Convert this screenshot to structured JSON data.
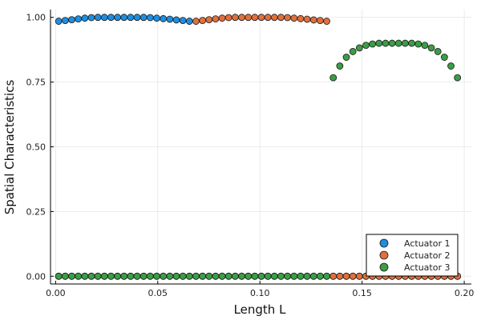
{
  "chart_data": {
    "type": "scatter",
    "title": "",
    "xlabel": "Length L",
    "ylabel": "Spatial Characteristics",
    "xlim": [
      -0.0025,
      0.2035
    ],
    "ylim": [
      -0.03,
      1.03
    ],
    "xticks": [
      0.0,
      0.05,
      0.1,
      0.15,
      0.2
    ],
    "xtick_labels": [
      "0.00",
      "0.05",
      "0.10",
      "0.15",
      "0.20"
    ],
    "yticks": [
      0.0,
      0.25,
      0.5,
      0.75,
      1.0
    ],
    "ytick_labels": [
      "0.00",
      "0.25",
      "0.50",
      "0.75",
      "1.00"
    ],
    "grid": true,
    "legend_position": "bottom-right",
    "series": [
      {
        "name": "Actuator 1",
        "color": "#1f8ee0",
        "points": [
          [
            0.0015,
            0.985
          ],
          [
            0.0047,
            0.988
          ],
          [
            0.0079,
            0.991
          ],
          [
            0.0111,
            0.994
          ],
          [
            0.0143,
            0.997
          ],
          [
            0.0175,
            0.999
          ],
          [
            0.0207,
            1.0
          ],
          [
            0.0239,
            1.0
          ],
          [
            0.0271,
            1.0
          ],
          [
            0.0303,
            1.0
          ],
          [
            0.0335,
            1.0
          ],
          [
            0.0367,
            1.0
          ],
          [
            0.0399,
            1.0
          ],
          [
            0.0431,
            1.0
          ],
          [
            0.0463,
            0.999
          ],
          [
            0.0495,
            0.997
          ],
          [
            0.0527,
            0.995
          ],
          [
            0.0559,
            0.993
          ],
          [
            0.0591,
            0.99
          ],
          [
            0.0623,
            0.988
          ],
          [
            0.0655,
            0.985
          ],
          [
            0.0687,
            0.0
          ],
          [
            0.0719,
            0.0
          ],
          [
            0.0751,
            0.0
          ],
          [
            0.0783,
            0.0
          ],
          [
            0.0815,
            0.0
          ],
          [
            0.0847,
            0.0
          ],
          [
            0.0879,
            0.0
          ],
          [
            0.0911,
            0.0
          ],
          [
            0.0943,
            0.0
          ],
          [
            0.0975,
            0.0
          ],
          [
            0.1007,
            0.0
          ],
          [
            0.1039,
            0.0
          ],
          [
            0.1071,
            0.0
          ],
          [
            0.1103,
            0.0
          ],
          [
            0.1135,
            0.0
          ],
          [
            0.1167,
            0.0
          ],
          [
            0.1199,
            0.0
          ],
          [
            0.1231,
            0.0
          ],
          [
            0.1263,
            0.0
          ],
          [
            0.1295,
            0.0
          ],
          [
            0.1327,
            0.0
          ],
          [
            0.1359,
            0.0
          ],
          [
            0.1391,
            0.0
          ],
          [
            0.1423,
            0.0
          ],
          [
            0.1455,
            0.0
          ],
          [
            0.1487,
            0.0
          ],
          [
            0.1519,
            0.0
          ],
          [
            0.1551,
            0.0
          ],
          [
            0.1583,
            0.0
          ],
          [
            0.1615,
            0.0
          ],
          [
            0.1647,
            0.0
          ],
          [
            0.1679,
            0.0
          ],
          [
            0.1711,
            0.0
          ],
          [
            0.1743,
            0.0
          ],
          [
            0.1775,
            0.0
          ],
          [
            0.1807,
            0.0
          ],
          [
            0.1839,
            0.0
          ],
          [
            0.1871,
            0.0
          ],
          [
            0.1903,
            0.0
          ],
          [
            0.1935,
            0.0
          ],
          [
            0.1967,
            0.0
          ]
        ]
      },
      {
        "name": "Actuator 2",
        "color": "#e0703c",
        "points": [
          [
            0.0015,
            0.0
          ],
          [
            0.0047,
            0.0
          ],
          [
            0.0079,
            0.0
          ],
          [
            0.0111,
            0.0
          ],
          [
            0.0143,
            0.0
          ],
          [
            0.0175,
            0.0
          ],
          [
            0.0207,
            0.0
          ],
          [
            0.0239,
            0.0
          ],
          [
            0.0271,
            0.0
          ],
          [
            0.0303,
            0.0
          ],
          [
            0.0335,
            0.0
          ],
          [
            0.0367,
            0.0
          ],
          [
            0.0399,
            0.0
          ],
          [
            0.0431,
            0.0
          ],
          [
            0.0463,
            0.0
          ],
          [
            0.0495,
            0.0
          ],
          [
            0.0527,
            0.0
          ],
          [
            0.0559,
            0.0
          ],
          [
            0.0591,
            0.0
          ],
          [
            0.0623,
            0.0
          ],
          [
            0.0655,
            0.0
          ],
          [
            0.0687,
            0.985
          ],
          [
            0.0719,
            0.988
          ],
          [
            0.0751,
            0.991
          ],
          [
            0.0783,
            0.994
          ],
          [
            0.0815,
            0.997
          ],
          [
            0.0847,
            0.999
          ],
          [
            0.0879,
            1.0
          ],
          [
            0.0911,
            1.0
          ],
          [
            0.0943,
            1.0
          ],
          [
            0.0975,
            1.0
          ],
          [
            0.1007,
            1.0
          ],
          [
            0.1039,
            1.0
          ],
          [
            0.1071,
            1.0
          ],
          [
            0.1103,
            1.0
          ],
          [
            0.1135,
            0.999
          ],
          [
            0.1167,
            0.997
          ],
          [
            0.1199,
            0.995
          ],
          [
            0.1231,
            0.993
          ],
          [
            0.1263,
            0.99
          ],
          [
            0.1295,
            0.988
          ],
          [
            0.1327,
            0.985
          ],
          [
            0.1359,
            0.0
          ],
          [
            0.1391,
            0.0
          ],
          [
            0.1423,
            0.0
          ],
          [
            0.1455,
            0.0
          ],
          [
            0.1487,
            0.0
          ],
          [
            0.1519,
            0.0
          ],
          [
            0.1551,
            0.0
          ],
          [
            0.1583,
            0.0
          ],
          [
            0.1615,
            0.0
          ],
          [
            0.1647,
            0.0
          ],
          [
            0.1679,
            0.0
          ],
          [
            0.1711,
            0.0
          ],
          [
            0.1743,
            0.0
          ],
          [
            0.1775,
            0.0
          ],
          [
            0.1807,
            0.0
          ],
          [
            0.1839,
            0.0
          ],
          [
            0.1871,
            0.0
          ],
          [
            0.1903,
            0.0
          ],
          [
            0.1935,
            0.0
          ],
          [
            0.1967,
            0.0
          ]
        ]
      },
      {
        "name": "Actuator 3",
        "color": "#3a9e45",
        "points": [
          [
            0.0015,
            0.0
          ],
          [
            0.0047,
            0.0
          ],
          [
            0.0079,
            0.0
          ],
          [
            0.0111,
            0.0
          ],
          [
            0.0143,
            0.0
          ],
          [
            0.0175,
            0.0
          ],
          [
            0.0207,
            0.0
          ],
          [
            0.0239,
            0.0
          ],
          [
            0.0271,
            0.0
          ],
          [
            0.0303,
            0.0
          ],
          [
            0.0335,
            0.0
          ],
          [
            0.0367,
            0.0
          ],
          [
            0.0399,
            0.0
          ],
          [
            0.0431,
            0.0
          ],
          [
            0.0463,
            0.0
          ],
          [
            0.0495,
            0.0
          ],
          [
            0.0527,
            0.0
          ],
          [
            0.0559,
            0.0
          ],
          [
            0.0591,
            0.0
          ],
          [
            0.0623,
            0.0
          ],
          [
            0.0655,
            0.0
          ],
          [
            0.0687,
            0.0
          ],
          [
            0.0719,
            0.0
          ],
          [
            0.0751,
            0.0
          ],
          [
            0.0783,
            0.0
          ],
          [
            0.0815,
            0.0
          ],
          [
            0.0847,
            0.0
          ],
          [
            0.0879,
            0.0
          ],
          [
            0.0911,
            0.0
          ],
          [
            0.0943,
            0.0
          ],
          [
            0.0975,
            0.0
          ],
          [
            0.1007,
            0.0
          ],
          [
            0.1039,
            0.0
          ],
          [
            0.1071,
            0.0
          ],
          [
            0.1103,
            0.0
          ],
          [
            0.1135,
            0.0
          ],
          [
            0.1167,
            0.0
          ],
          [
            0.1199,
            0.0
          ],
          [
            0.1231,
            0.0
          ],
          [
            0.1263,
            0.0
          ],
          [
            0.1295,
            0.0
          ],
          [
            0.1327,
            0.0
          ],
          [
            0.1359,
            0.767
          ],
          [
            0.1391,
            0.812
          ],
          [
            0.1423,
            0.846
          ],
          [
            0.1455,
            0.868
          ],
          [
            0.1487,
            0.882
          ],
          [
            0.1519,
            0.892
          ],
          [
            0.1551,
            0.897
          ],
          [
            0.1583,
            0.9
          ],
          [
            0.1615,
            0.9
          ],
          [
            0.1647,
            0.9
          ],
          [
            0.1679,
            0.9
          ],
          [
            0.1711,
            0.9
          ],
          [
            0.1743,
            0.9
          ],
          [
            0.1775,
            0.897
          ],
          [
            0.1807,
            0.892
          ],
          [
            0.1839,
            0.882
          ],
          [
            0.1871,
            0.868
          ],
          [
            0.1903,
            0.846
          ],
          [
            0.1935,
            0.812
          ],
          [
            0.1967,
            0.767
          ]
        ]
      }
    ]
  }
}
